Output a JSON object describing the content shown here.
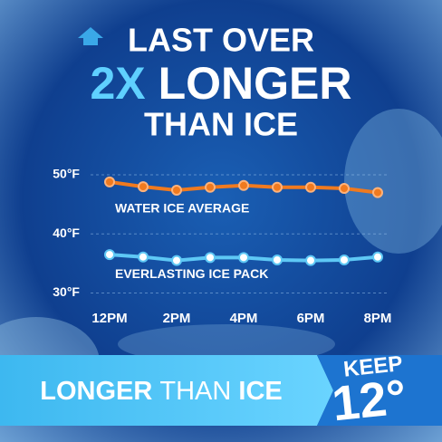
{
  "header": {
    "line1": "LAST OVER",
    "highlight": "2X",
    "line2": "LONGER",
    "line3": "THAN ICE"
  },
  "chart_data": {
    "type": "line",
    "categories": [
      "12PM",
      null,
      "2PM",
      null,
      "4PM",
      null,
      "6PM",
      null,
      "8PM"
    ],
    "series": [
      {
        "name": "WATER ICE AVERAGE",
        "color": "#f07a1f",
        "values": [
          48.8,
          48.0,
          47.4,
          47.9,
          48.2,
          47.9,
          47.9,
          47.7,
          47.0
        ]
      },
      {
        "name": "EVERLASTING ICE PACK",
        "color": "#5ec8f5",
        "values": [
          36.5,
          36.1,
          35.5,
          36.0,
          36.0,
          35.6,
          35.5,
          35.6,
          36.1
        ]
      }
    ],
    "ylim": [
      29,
      52
    ],
    "yticks": [
      {
        "value": 30,
        "label": "30°F"
      },
      {
        "value": 40,
        "label": "40°F"
      },
      {
        "value": 50,
        "label": "50°F"
      }
    ],
    "grid": true
  },
  "banner": {
    "word1": "LONGER",
    "word2": "THAN",
    "word3": "ICE",
    "badge_top": "KEEP",
    "badge_value": "12°"
  }
}
